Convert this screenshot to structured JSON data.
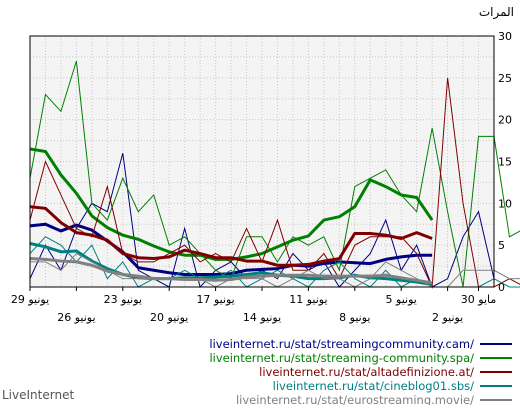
{
  "chart_data": {
    "type": "line",
    "ylabel": "المرات",
    "ylim": [
      0,
      30
    ],
    "y_ticks": [
      0,
      5,
      10,
      15,
      20,
      25,
      30
    ],
    "grid": true,
    "x_upper_ticks": [
      {
        "i": 0,
        "label": "29 يونيو"
      },
      {
        "i": 6,
        "label": "23 يونيو"
      },
      {
        "i": 12,
        "label": "17 يونيو"
      },
      {
        "i": 18,
        "label": "11 يونيو"
      },
      {
        "i": 24,
        "label": "5 يونيو"
      },
      {
        "i": 29,
        "label": "30 مايو"
      }
    ],
    "x_lower_ticks": [
      {
        "i": 3,
        "label": "26 يونيو"
      },
      {
        "i": 9,
        "label": "20 يونيو"
      },
      {
        "i": 15,
        "label": "14 يونيو"
      },
      {
        "i": 21,
        "label": "8 يونيو"
      },
      {
        "i": 27,
        "label": "2 يونيو"
      }
    ],
    "legend_position": "bottom",
    "series": [
      {
        "name": "liveinternet.ru/stat/streamingcommunity.cam/",
        "color": "#000080",
        "daily": [
          1,
          5,
          2,
          7,
          10,
          9,
          16,
          2,
          1,
          0,
          7,
          0,
          2,
          3,
          1,
          2,
          1,
          4,
          2,
          3,
          0,
          2,
          4,
          8,
          2,
          5,
          0,
          1,
          6,
          9,
          1
        ],
        "avg": [
          7.3,
          7.5,
          6.7,
          7.4,
          6.8,
          5.5,
          4.2,
          2.3,
          2.0,
          1.7,
          1.5,
          1.5,
          1.5,
          1.6,
          2.0,
          2.1,
          2.2,
          2.6,
          2.5,
          2.8,
          3.0,
          2.9,
          2.8,
          3.3,
          3.6,
          3.8,
          3.8
        ]
      },
      {
        "name": "liveinternet.ru/stat/streaming-community.spa/",
        "color": "#008000",
        "daily": [
          13,
          23,
          21,
          27,
          10,
          8,
          13,
          9,
          11,
          5,
          6,
          4,
          2,
          1,
          6,
          6,
          3,
          6,
          5,
          6,
          2,
          12,
          13,
          14,
          11,
          9,
          19,
          9,
          0,
          18,
          18,
          6,
          7,
          9,
          2,
          1
        ],
        "avg": [
          16.5,
          16.2,
          13.4,
          11.2,
          8.5,
          7.1,
          6.2,
          5.7,
          4.9,
          4.2,
          3.8,
          3.8,
          3.3,
          3.3,
          3.6,
          4.0,
          4.8,
          5.6,
          6.1,
          8.0,
          8.4,
          9.6,
          12.8,
          12.0,
          11.0,
          10.7,
          8.0
        ]
      },
      {
        "name": "liveinternet.ru/stat/altadefinizione.at/",
        "color": "#800000",
        "daily": [
          8,
          15,
          11,
          7,
          6,
          12,
          4,
          3,
          3,
          4,
          5,
          3,
          4,
          3,
          7,
          3,
          8,
          2,
          2,
          4,
          1,
          5,
          6,
          6,
          6,
          4,
          0,
          25,
          10,
          0,
          0,
          1,
          0,
          11,
          4
        ],
        "avg": [
          9.6,
          9.4,
          7.7,
          6.5,
          6.2,
          5.6,
          4.0,
          3.5,
          3.4,
          3.6,
          4.4,
          4.0,
          3.5,
          3.5,
          3.1,
          3.1,
          2.6,
          2.6,
          2.7,
          3.1,
          3.4,
          6.4,
          6.4,
          6.2,
          5.8,
          6.5,
          5.8
        ]
      },
      {
        "name": "liveinternet.ru/stat/cineblog01.sbs/",
        "color": "#008080",
        "daily": [
          4,
          6,
          5,
          3,
          5,
          1,
          3,
          0,
          1,
          1,
          2,
          1,
          1,
          2,
          0,
          1,
          2,
          1,
          0,
          2,
          3,
          1,
          0,
          2,
          0,
          1,
          0,
          0,
          0,
          0,
          1,
          0,
          0
        ],
        "avg": [
          5.2,
          4.8,
          4.2,
          4.3,
          3.1,
          2.2,
          1.5,
          1.1,
          1.0,
          1.0,
          1.1,
          1.1,
          1.2,
          1.3,
          1.5,
          1.7,
          1.4,
          1.3,
          1.0,
          1.0,
          1.1,
          1.4,
          1.1,
          1.0,
          0.8,
          0.6,
          0.3
        ]
      },
      {
        "name": "liveinternet.ru/stat/eurostreaming.movie/",
        "color": "#808080",
        "daily": [
          3,
          3,
          2,
          4,
          3,
          2,
          1,
          1,
          1,
          1,
          1,
          1,
          0,
          1,
          1,
          1,
          0,
          1,
          2,
          1,
          1,
          0,
          1,
          3,
          2,
          1,
          0,
          0,
          2,
          2,
          2,
          1,
          1,
          2
        ],
        "avg": [
          3.4,
          3.3,
          3.1,
          3.0,
          2.6,
          1.9,
          1.5,
          1.3,
          1.0,
          1.0,
          0.9,
          0.9,
          0.8,
          0.9,
          1.2,
          1.3,
          1.4,
          1.4,
          1.4,
          1.3,
          1.3,
          1.3,
          1.3,
          1.4,
          1.1,
          0.8,
          0.5
        ]
      }
    ]
  },
  "footer": {
    "credit": "LiveInternet"
  }
}
